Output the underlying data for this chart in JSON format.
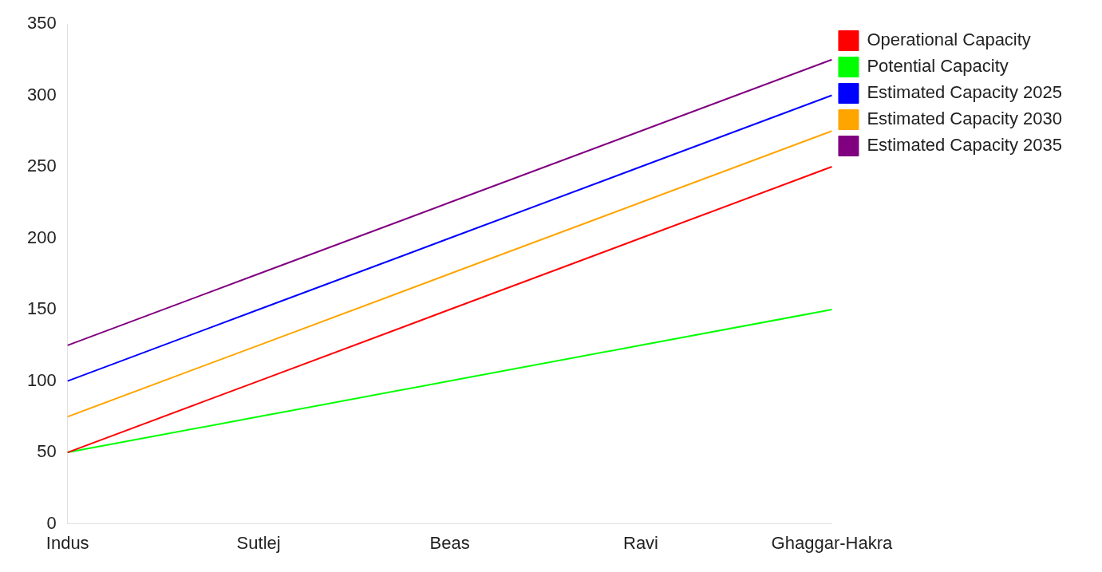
{
  "chart_data": {
    "type": "line",
    "categories": [
      "Indus",
      "Sutlej",
      "Beas",
      "Ravi",
      "Ghaggar-Hakra"
    ],
    "series": [
      {
        "name": "Operational Capacity",
        "color": "#ff0000",
        "values": [
          50,
          100,
          150,
          200,
          250
        ]
      },
      {
        "name": "Potential Capacity",
        "color": "#00ff00",
        "values": [
          50,
          75,
          100,
          125,
          150
        ]
      },
      {
        "name": "Estimated Capacity 2025",
        "color": "#0000ff",
        "values": [
          100,
          150,
          200,
          250,
          300
        ]
      },
      {
        "name": "Estimated Capacity 2030",
        "color": "#ffa500",
        "values": [
          75,
          125,
          175,
          225,
          275
        ]
      },
      {
        "name": "Estimated Capacity 2035",
        "color": "#800080",
        "values": [
          125,
          175,
          225,
          275,
          325
        ]
      }
    ],
    "ylim": [
      0,
      350
    ],
    "yticks": [
      0,
      50,
      100,
      150,
      200,
      250,
      300,
      350
    ],
    "grid": false,
    "legend": "top right",
    "marker": "none",
    "line_style": "solid"
  }
}
